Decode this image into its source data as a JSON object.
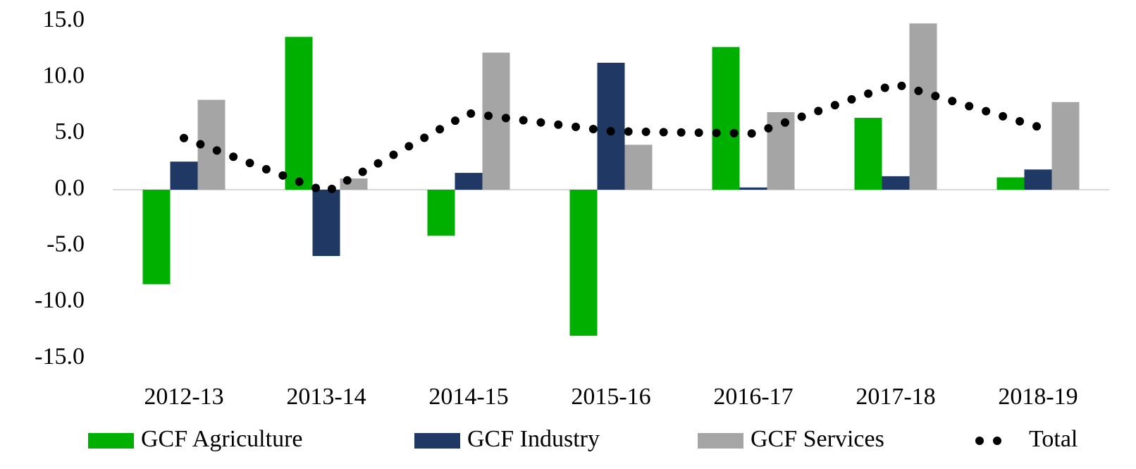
{
  "chart_data": {
    "type": "bar",
    "categories": [
      "2012-13",
      "2013-14",
      "2014-15",
      "2015-16",
      "2016-17",
      "2017-18",
      "2018-19"
    ],
    "series": [
      {
        "name": "GCF Agriculture",
        "color": "#00b000",
        "values": [
          -8.4,
          13.6,
          -4.1,
          -13.0,
          12.7,
          6.4,
          1.1
        ]
      },
      {
        "name": "GCF Industry",
        "color": "#203864",
        "values": [
          2.5,
          -5.9,
          1.5,
          11.3,
          0.2,
          1.2,
          1.8
        ]
      },
      {
        "name": "GCF Services",
        "color": "#a5a5a5",
        "values": [
          8.0,
          1.0,
          12.2,
          4.0,
          6.9,
          14.8,
          7.8
        ]
      },
      {
        "name": "Total",
        "color": "#000000",
        "type": "line",
        "values": [
          4.6,
          -0.2,
          6.8,
          5.2,
          5.0,
          9.4,
          5.6
        ]
      }
    ],
    "ylim": [
      -15,
      15
    ],
    "yticks": [
      {
        "value": -15,
        "label": "-15.0"
      },
      {
        "value": -10,
        "label": "-10.0"
      },
      {
        "value": -5,
        "label": "-5.0"
      },
      {
        "value": 0,
        "label": "0.0"
      },
      {
        "value": 5,
        "label": "5.0"
      },
      {
        "value": 10,
        "label": "10.0"
      },
      {
        "value": 15,
        "label": "15.0"
      }
    ],
    "grid": false,
    "legend": "bottom"
  }
}
